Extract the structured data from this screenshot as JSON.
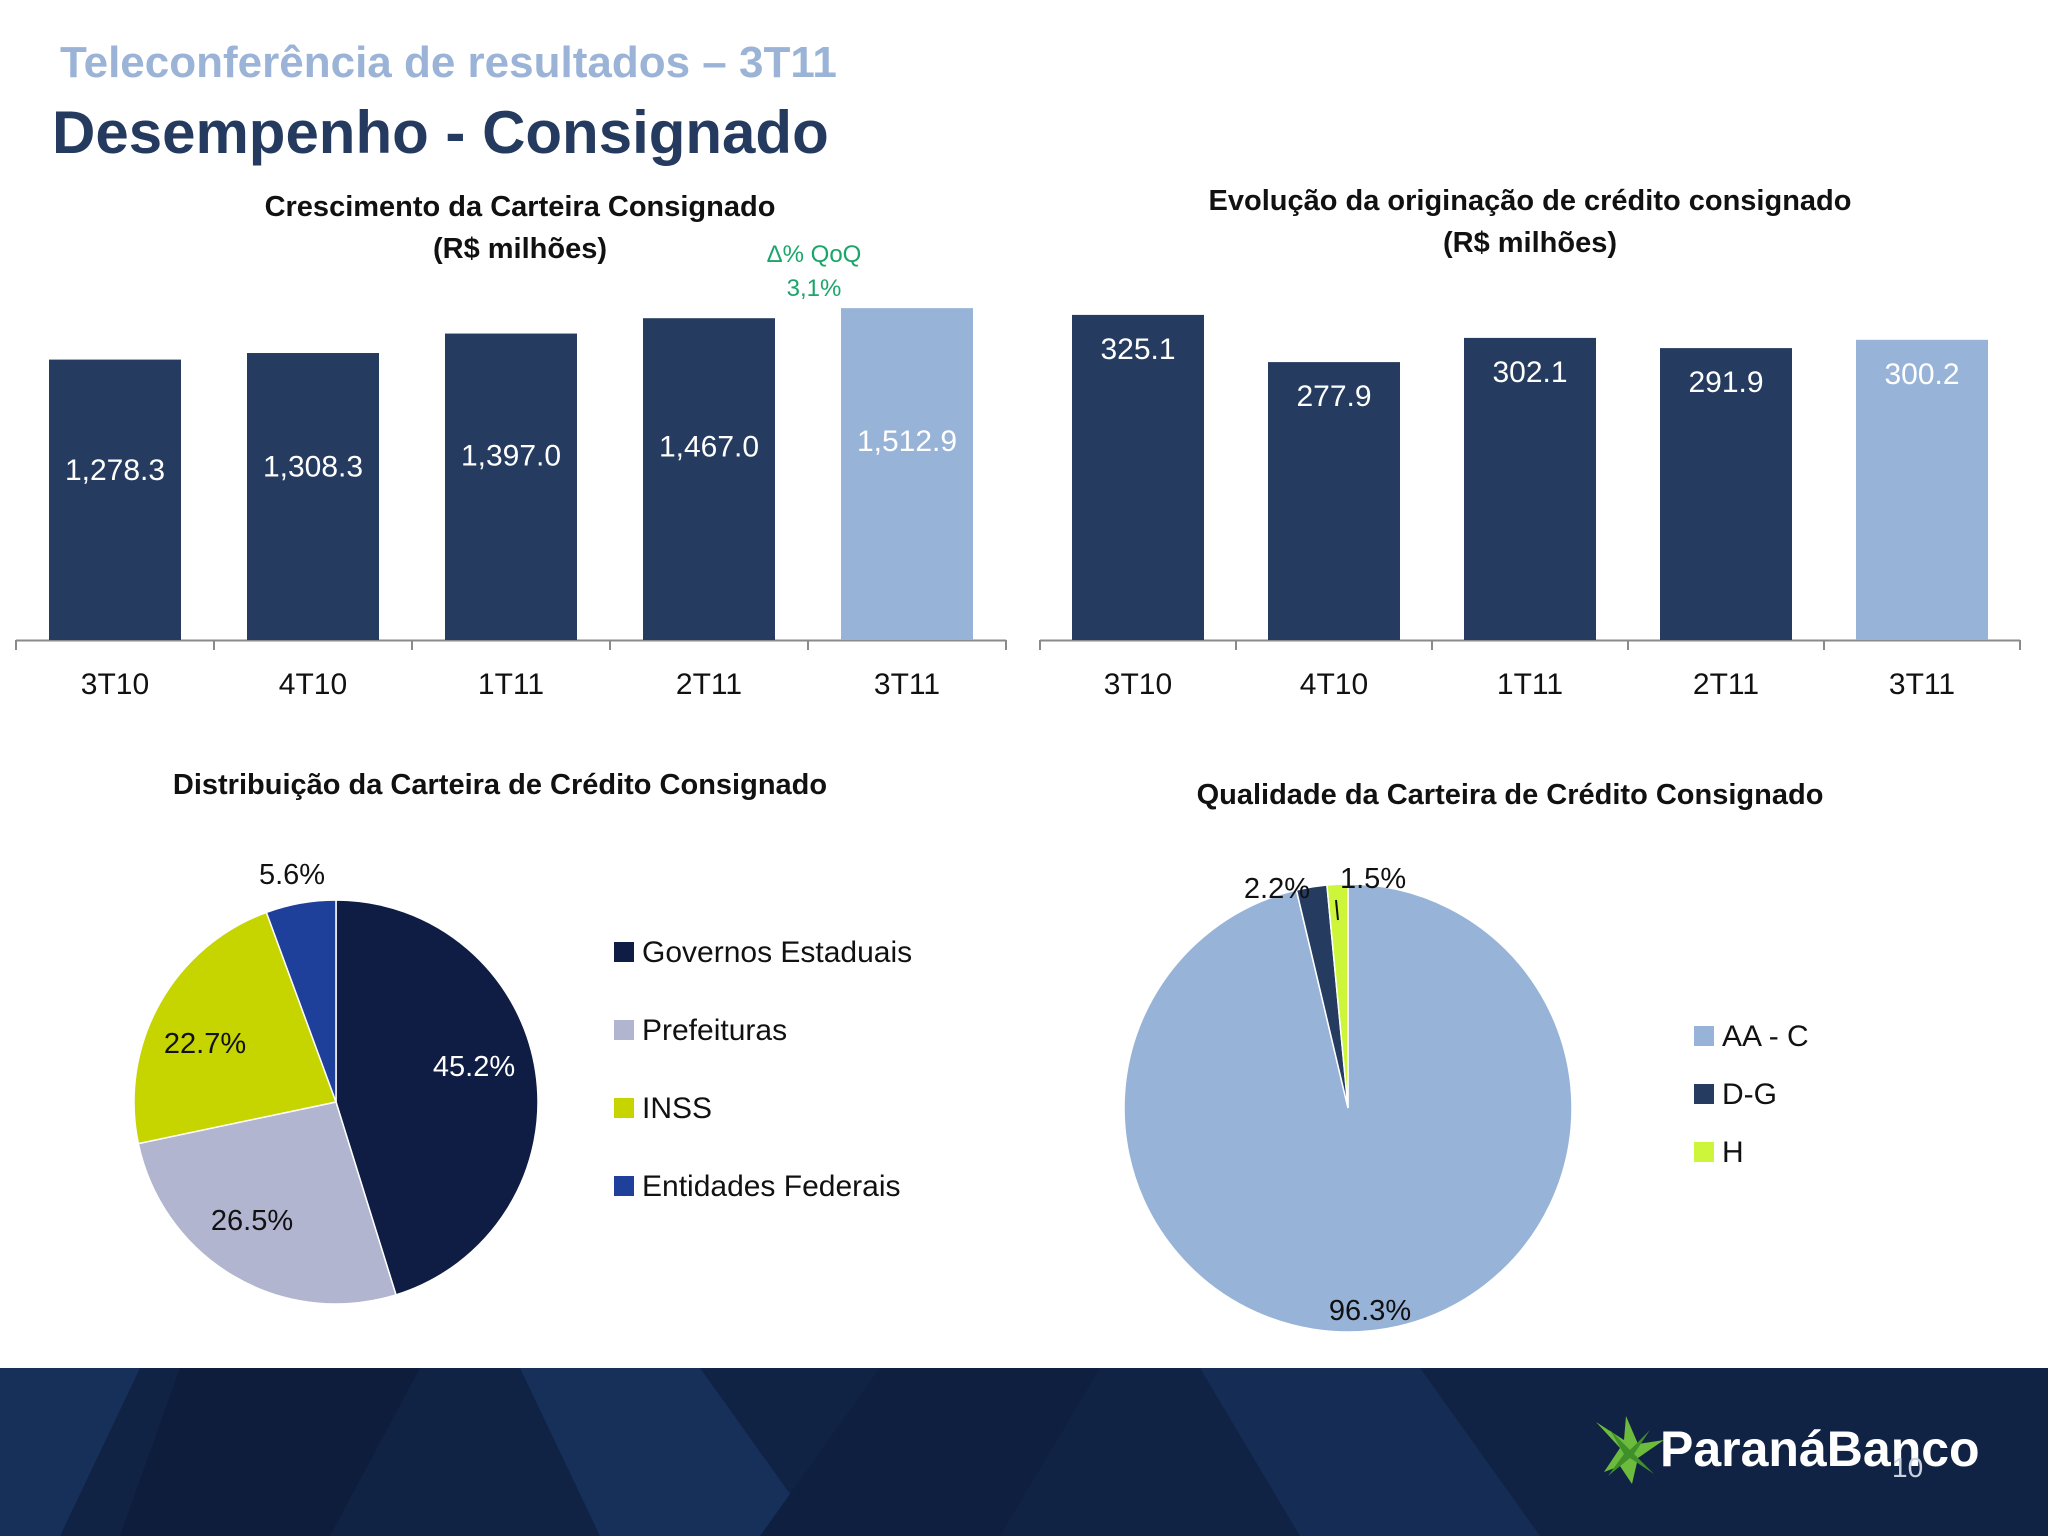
{
  "header": {
    "supertitle": "Teleconferência de resultados – 3T11",
    "title": "Desempenho - Consignado"
  },
  "colors": {
    "dark_bar": "#253c60",
    "light_bar": "#97b3d8",
    "qoq_green": "#1aa56a",
    "footer_bg": "#112345"
  },
  "chart_data": [
    {
      "type": "bar",
      "title": "Crescimento da Carteira Consignado",
      "subtitle": "(R$ milhões)",
      "categories": [
        "3T10",
        "4T10",
        "1T11",
        "2T11",
        "3T11"
      ],
      "values": [
        1278.3,
        1308.3,
        1397.0,
        1467.0,
        1512.9
      ],
      "value_labels": [
        "1,278.3",
        "1,308.3",
        "1,397.0",
        "1,467.0",
        "1,512.9"
      ],
      "highlight_last": true,
      "annotation": {
        "line1": "Δ% QoQ",
        "line2": "3,1%"
      },
      "ylim": [
        0,
        1550
      ],
      "grid": false
    },
    {
      "type": "bar",
      "title": "Evolução da originação de crédito consignado",
      "subtitle": "(R$ milhões)",
      "categories": [
        "3T10",
        "4T10",
        "1T11",
        "2T11",
        "3T11"
      ],
      "values": [
        325.1,
        277.9,
        302.1,
        291.9,
        300.2
      ],
      "value_labels": [
        "325.1",
        "277.9",
        "302.1",
        "291.9",
        "300.2"
      ],
      "highlight_last": true,
      "ylim": [
        0,
        340
      ],
      "grid": false
    },
    {
      "type": "pie",
      "title": "Distribuição da Carteira de Crédito Consignado",
      "labels": [
        "Governos Estaduais",
        "Prefeituras",
        "INSS",
        "Entidades Federais"
      ],
      "values": [
        45.2,
        26.5,
        22.7,
        5.6
      ],
      "value_labels": [
        "45.2%",
        "26.5%",
        "22.7%",
        "5.6%"
      ],
      "colors": [
        "#0f1d45",
        "#b2b5cf",
        "#c6d400",
        "#1f409a"
      ],
      "legend": "right"
    },
    {
      "type": "pie",
      "title": "Qualidade da Carteira de Crédito Consignado",
      "labels": [
        "AA - C",
        "D-G",
        "H"
      ],
      "values": [
        96.3,
        2.2,
        1.5
      ],
      "value_labels": [
        "96.3%",
        "2.2%",
        "1.5%"
      ],
      "colors": [
        "#97b3d8",
        "#253c60",
        "#cdf53a"
      ],
      "legend": "right"
    }
  ],
  "footer": {
    "brand": "ParanáBanco",
    "page_number": "10"
  }
}
